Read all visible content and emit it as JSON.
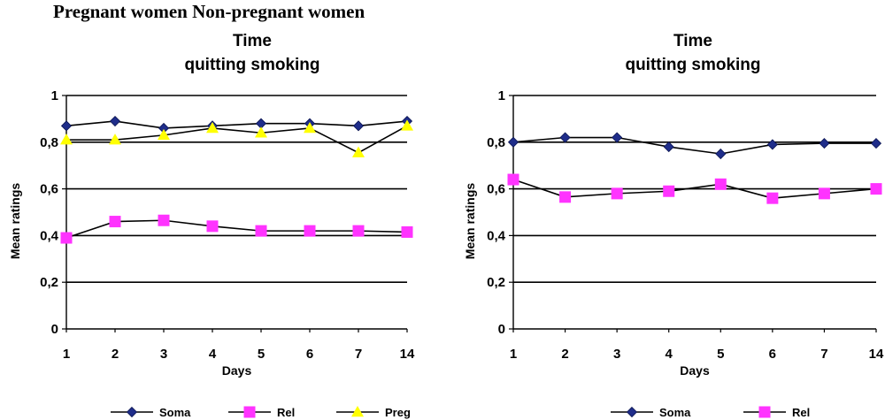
{
  "header": "Pregnant women Non-pregnant women",
  "chart_data": [
    {
      "type": "line",
      "title_line1": "Time",
      "title_line2": "quitting smoking",
      "xlabel": "Days",
      "ylabel": "Mean ratings",
      "categories": [
        "1",
        "2",
        "3",
        "4",
        "5",
        "6",
        "7",
        "14"
      ],
      "ylim": [
        0,
        1
      ],
      "yticks": [
        "0",
        "0,2",
        "0,4",
        "0,6",
        "0,8",
        "1"
      ],
      "grid": true,
      "legend": "bottom",
      "series": [
        {
          "name": "Soma",
          "marker": "diamond",
          "color": "#1f2d8a",
          "values": [
            0.87,
            0.89,
            0.86,
            0.87,
            0.88,
            0.88,
            0.87,
            0.89
          ]
        },
        {
          "name": "Rel",
          "marker": "square",
          "color": "#ff33ff",
          "values": [
            0.39,
            0.46,
            0.465,
            0.44,
            0.42,
            0.42,
            0.42,
            0.415
          ]
        },
        {
          "name": "Preg",
          "marker": "triangle",
          "color": "#ffff00",
          "values": [
            0.81,
            0.81,
            0.83,
            0.86,
            0.84,
            0.86,
            0.755,
            0.87
          ]
        }
      ]
    },
    {
      "type": "line",
      "title_line1": "Time",
      "title_line2": "quitting smoking",
      "xlabel": "Days",
      "ylabel": "Mean ratings",
      "categories": [
        "1",
        "2",
        "3",
        "4",
        "5",
        "6",
        "7",
        "14"
      ],
      "ylim": [
        0,
        1
      ],
      "yticks": [
        "0",
        "0,2",
        "0,4",
        "0,6",
        "0,8",
        "1"
      ],
      "grid": true,
      "legend": "bottom",
      "series": [
        {
          "name": "Soma",
          "marker": "diamond",
          "color": "#1f2d8a",
          "values": [
            0.8,
            0.82,
            0.82,
            0.78,
            0.75,
            0.79,
            0.795,
            0.795
          ]
        },
        {
          "name": "Rel",
          "marker": "square",
          "color": "#ff33ff",
          "values": [
            0.64,
            0.565,
            0.58,
            0.59,
            0.62,
            0.56,
            0.58,
            0.6
          ]
        }
      ]
    }
  ]
}
